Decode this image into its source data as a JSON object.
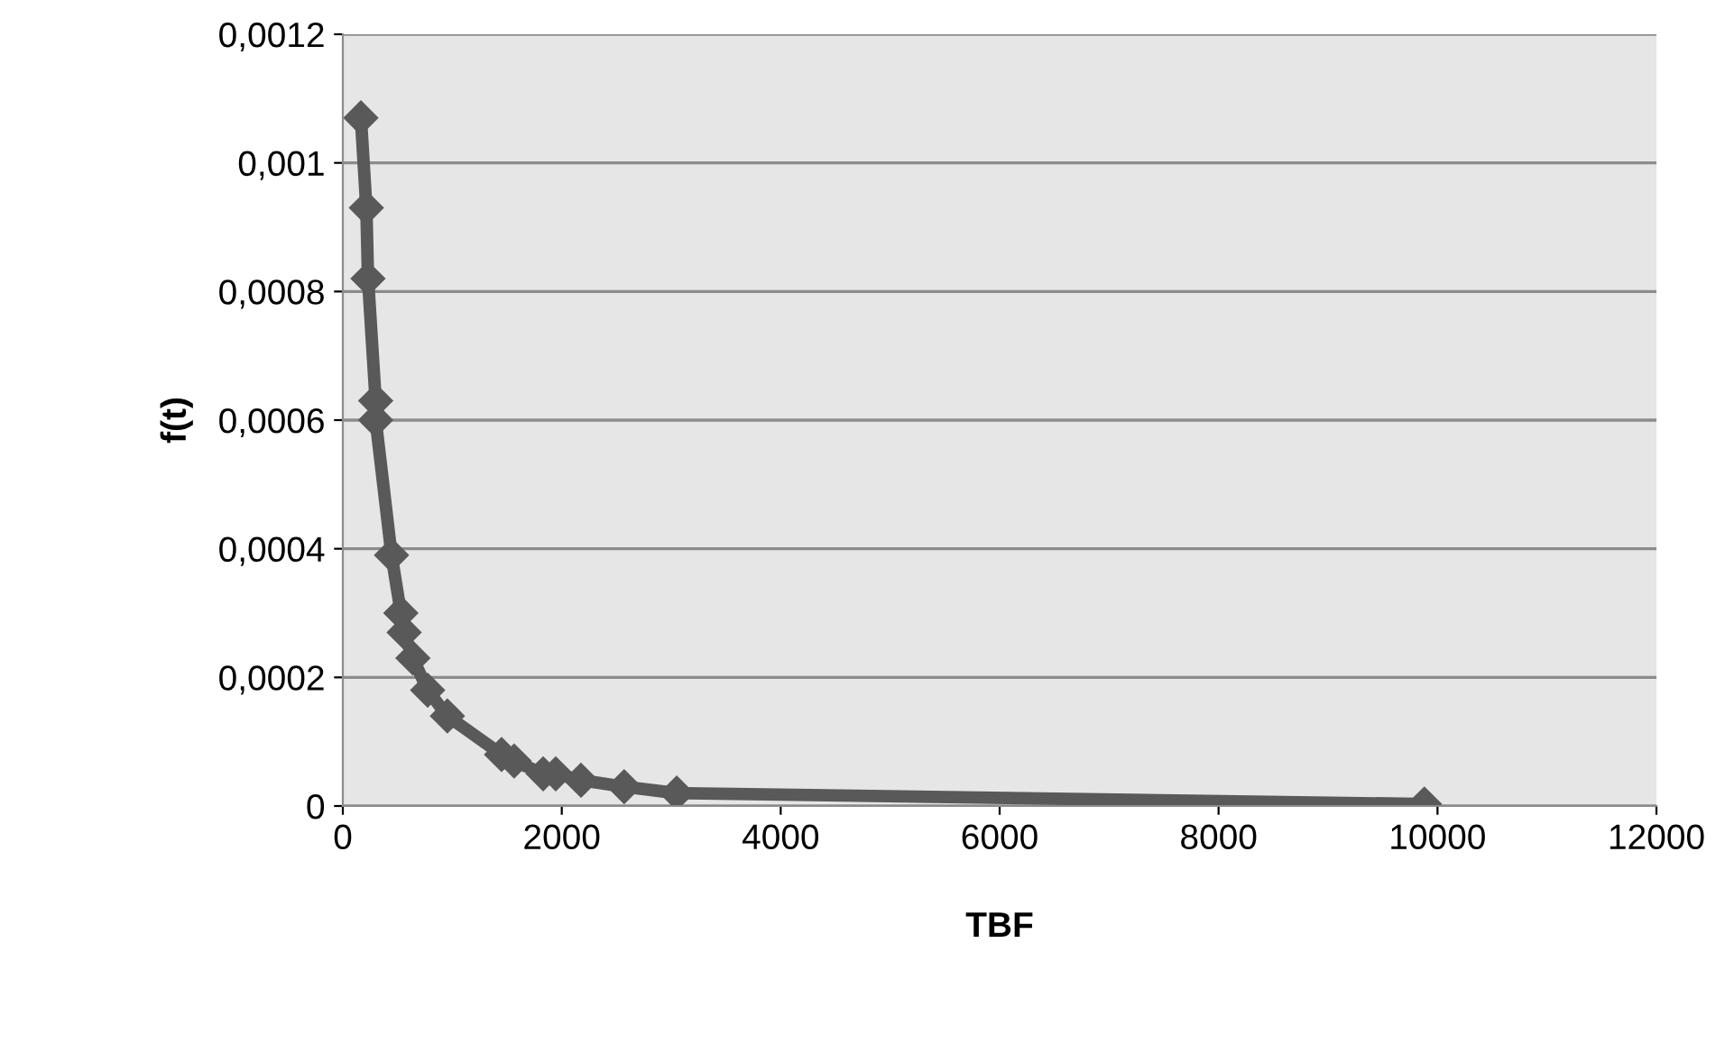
{
  "chart_data": {
    "type": "line",
    "xlabel": "TBF",
    "ylabel": "f(t)",
    "x": [
      165,
      215,
      230,
      300,
      300,
      445,
      530,
      560,
      640,
      775,
      955,
      1450,
      1565,
      1830,
      1945,
      2175,
      2570,
      3050,
      9880
    ],
    "series": [
      {
        "color": "#595959",
        "values": [
          0.00107,
          0.00093,
          0.00082,
          0.00063,
          0.0006,
          0.00039,
          0.0003,
          0.00027,
          0.00023,
          0.00018,
          0.00014,
          8e-05,
          7e-05,
          5e-05,
          5e-05,
          4e-05,
          3e-05,
          2e-05,
          3e-06
        ]
      }
    ],
    "xlim": [
      0,
      12000
    ],
    "xticks": [
      0,
      2000,
      4000,
      6000,
      8000,
      10000,
      12000
    ],
    "ylim": [
      0,
      0.0012
    ],
    "yticks": [
      0,
      {
        "value": 0.0002,
        "label": "0,0002"
      },
      {
        "value": 0.0004,
        "label": "0,0004"
      },
      {
        "value": 0.0006,
        "label": "0,0006"
      },
      {
        "value": 0.0008,
        "label": "0,0008"
      },
      {
        "value": 0.001,
        "label": "0,001"
      },
      {
        "value": 0.0012,
        "label": "0,0012"
      }
    ],
    "grid": "y",
    "legend": false,
    "marker": "diamond",
    "line_style": "solid"
  }
}
